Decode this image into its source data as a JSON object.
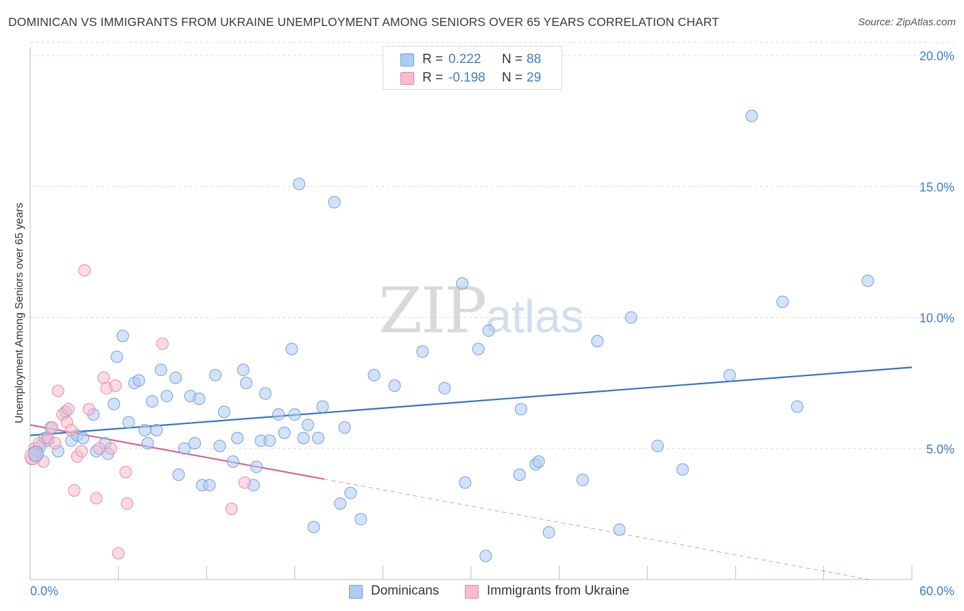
{
  "header": {
    "title": "DOMINICAN VS IMMIGRANTS FROM UKRAINE UNEMPLOYMENT AMONG SENIORS OVER 65 YEARS CORRELATION CHART",
    "source": "Source: ZipAtlas.com"
  },
  "watermark": {
    "zip": "ZIP",
    "atlas": "atlas"
  },
  "legend": {
    "r_label": "R =",
    "n_label": "N =",
    "rows": [
      {
        "r": "0.222",
        "n": "88",
        "color": "#aecbf2"
      },
      {
        "r": "-0.198",
        "n": "29",
        "color": "#f7bccd"
      }
    ]
  },
  "bottom_legend": {
    "dominicans": "Dominicans",
    "ukraine": "Immigrants from Ukraine"
  },
  "chart_data": {
    "type": "scatter",
    "title": "DOMINICAN VS IMMIGRANTS FROM UKRAINE UNEMPLOYMENT AMONG SENIORS OVER 65 YEARS CORRELATION CHART",
    "xlabel": "",
    "ylabel": "Unemployment Among Seniors over 65 years",
    "xlim": [
      0,
      60
    ],
    "ylim": [
      0,
      20.5
    ],
    "x_tick_labels": [
      "0.0%",
      "60.0%"
    ],
    "y_ticks": [
      5,
      10,
      15,
      20
    ],
    "y_tick_labels": [
      "5.0%",
      "10.0%",
      "15.0%",
      "20.0%"
    ],
    "series": [
      {
        "name": "Dominicans",
        "color": "#aecbf2",
        "stroke": "#6f9fdd",
        "trend_color": "#2f73cc",
        "r": 0.222,
        "n": 88,
        "trend": {
          "x0": 0,
          "y0": 5.5,
          "x1": 60,
          "y1": 8.1,
          "x_solid_end": 60
        },
        "points": [
          [
            0.3,
            4.7
          ],
          [
            0.5,
            4.8
          ],
          [
            0.7,
            5.1
          ],
          [
            1.0,
            5.4
          ],
          [
            1.4,
            5.8
          ],
          [
            1.9,
            4.9
          ],
          [
            2.4,
            6.4
          ],
          [
            2.8,
            5.3
          ],
          [
            3.2,
            5.5
          ],
          [
            3.6,
            5.4
          ],
          [
            4.3,
            6.3
          ],
          [
            4.5,
            4.9
          ],
          [
            5.1,
            5.2
          ],
          [
            5.3,
            4.8
          ],
          [
            5.7,
            6.7
          ],
          [
            5.9,
            8.5
          ],
          [
            6.3,
            9.3
          ],
          [
            6.7,
            6.0
          ],
          [
            7.1,
            7.5
          ],
          [
            7.4,
            7.6
          ],
          [
            7.8,
            5.7
          ],
          [
            8.0,
            5.2
          ],
          [
            8.3,
            6.8
          ],
          [
            8.6,
            5.7
          ],
          [
            8.9,
            8.0
          ],
          [
            9.3,
            7.0
          ],
          [
            9.9,
            7.7
          ],
          [
            10.1,
            4.0
          ],
          [
            10.5,
            5.0
          ],
          [
            10.9,
            7.0
          ],
          [
            11.2,
            5.2
          ],
          [
            11.5,
            6.9
          ],
          [
            11.7,
            3.6
          ],
          [
            12.2,
            3.6
          ],
          [
            12.6,
            7.8
          ],
          [
            12.9,
            5.1
          ],
          [
            13.2,
            6.4
          ],
          [
            13.8,
            4.5
          ],
          [
            14.1,
            5.4
          ],
          [
            14.5,
            8.0
          ],
          [
            14.7,
            7.5
          ],
          [
            15.2,
            3.6
          ],
          [
            15.4,
            4.3
          ],
          [
            15.7,
            5.3
          ],
          [
            16.0,
            7.1
          ],
          [
            16.3,
            5.3
          ],
          [
            16.9,
            6.3
          ],
          [
            17.3,
            5.6
          ],
          [
            17.8,
            8.8
          ],
          [
            18.0,
            6.3
          ],
          [
            18.3,
            15.1
          ],
          [
            18.6,
            5.4
          ],
          [
            18.9,
            5.9
          ],
          [
            19.3,
            2.0
          ],
          [
            19.6,
            5.4
          ],
          [
            19.9,
            6.6
          ],
          [
            20.7,
            14.4
          ],
          [
            21.1,
            2.9
          ],
          [
            21.4,
            5.8
          ],
          [
            21.8,
            3.3
          ],
          [
            22.5,
            2.3
          ],
          [
            23.4,
            7.8
          ],
          [
            24.8,
            7.4
          ],
          [
            26.7,
            8.7
          ],
          [
            28.2,
            7.3
          ],
          [
            29.4,
            11.3
          ],
          [
            29.6,
            3.7
          ],
          [
            30.5,
            8.8
          ],
          [
            31.0,
            0.9
          ],
          [
            31.2,
            9.5
          ],
          [
            33.3,
            4.0
          ],
          [
            33.4,
            6.5
          ],
          [
            34.4,
            4.4
          ],
          [
            34.6,
            4.5
          ],
          [
            35.3,
            1.8
          ],
          [
            37.6,
            3.8
          ],
          [
            38.6,
            9.1
          ],
          [
            40.1,
            1.9
          ],
          [
            40.9,
            10.0
          ],
          [
            42.7,
            5.1
          ],
          [
            44.4,
            4.2
          ],
          [
            47.6,
            7.8
          ],
          [
            49.1,
            17.7
          ],
          [
            51.2,
            10.6
          ],
          [
            52.2,
            6.6
          ],
          [
            57.0,
            11.4
          ],
          [
            0.4,
            4.9
          ],
          [
            1.2,
            5.3
          ]
        ]
      },
      {
        "name": "Immigrants from Ukraine",
        "color": "#f7bccd",
        "stroke": "#e689a6",
        "trend_color": "#e0608d",
        "r": -0.198,
        "n": 29,
        "trend": {
          "x0": 0,
          "y0": 5.9,
          "x1": 60,
          "y1": -0.3,
          "x_solid_end": 20
        },
        "points": [
          [
            0.1,
            4.6
          ],
          [
            0.3,
            5.0
          ],
          [
            0.6,
            5.2
          ],
          [
            0.9,
            4.5
          ],
          [
            1.2,
            5.4
          ],
          [
            1.5,
            5.8
          ],
          [
            1.7,
            5.2
          ],
          [
            1.9,
            7.2
          ],
          [
            2.2,
            6.3
          ],
          [
            2.5,
            6.0
          ],
          [
            2.6,
            6.5
          ],
          [
            2.8,
            5.7
          ],
          [
            3.0,
            3.4
          ],
          [
            3.2,
            4.7
          ],
          [
            3.5,
            4.9
          ],
          [
            3.7,
            11.8
          ],
          [
            4.0,
            6.5
          ],
          [
            4.5,
            3.1
          ],
          [
            4.7,
            5.0
          ],
          [
            5.0,
            7.7
          ],
          [
            5.2,
            7.3
          ],
          [
            5.5,
            5.0
          ],
          [
            5.8,
            7.4
          ],
          [
            6.0,
            1.0
          ],
          [
            6.5,
            4.1
          ],
          [
            6.6,
            2.9
          ],
          [
            9.0,
            9.0
          ],
          [
            13.7,
            2.7
          ],
          [
            14.6,
            3.7
          ]
        ]
      }
    ]
  }
}
